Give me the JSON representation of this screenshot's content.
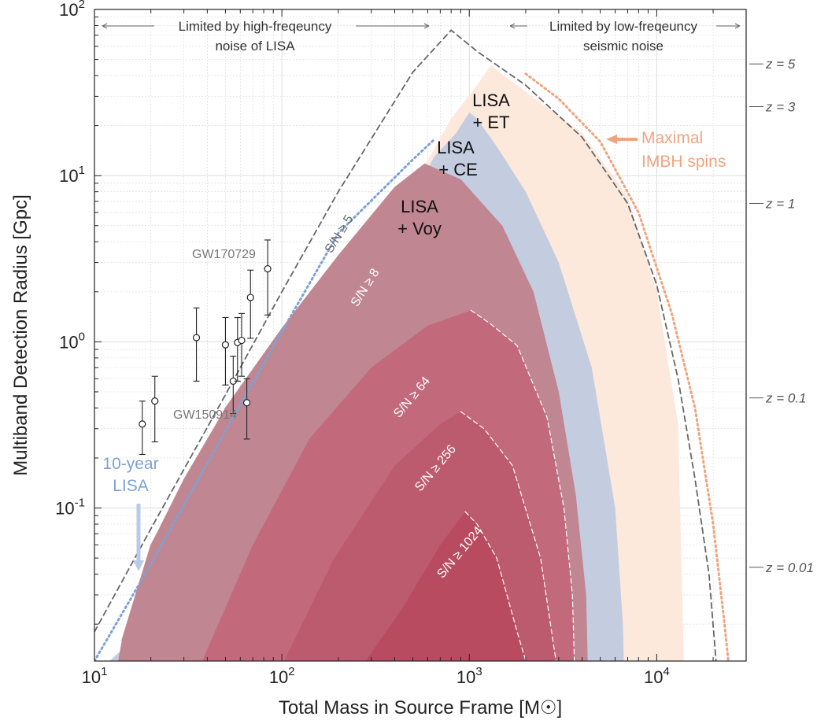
{
  "chart_data": {
    "type": "area",
    "x_scale": "log",
    "y_scale": "log",
    "xlim": [
      10,
      30000
    ],
    "ylim": [
      0.012,
      100
    ],
    "grid": true,
    "xlabel": "Total Mass in Source Frame [M☉]",
    "ylabel": "Multiband Detection Radius [Gpc]",
    "x_ticks": [
      {
        "value": 10,
        "base": "10",
        "exp": "1"
      },
      {
        "value": 100,
        "base": "10",
        "exp": "2"
      },
      {
        "value": 1000,
        "base": "10",
        "exp": "3"
      },
      {
        "value": 10000,
        "base": "10",
        "exp": "4"
      }
    ],
    "y_ticks": [
      {
        "value": 0.1,
        "base": "10",
        "exp": "-1"
      },
      {
        "value": 1,
        "base": "10",
        "exp": "0"
      },
      {
        "value": 10,
        "base": "10",
        "exp": "1"
      },
      {
        "value": 100,
        "base": "10",
        "exp": "2"
      }
    ],
    "redshift_axis": [
      {
        "z_label": "z = 5",
        "distance": 47
      },
      {
        "z_label": "z = 3",
        "distance": 26
      },
      {
        "z_label": "z = 1",
        "distance": 6.8
      },
      {
        "z_label": "z = 0.1",
        "distance": 0.46
      },
      {
        "z_label": "z = 0.01",
        "distance": 0.044
      }
    ],
    "regions": [
      {
        "label_line1": "LISA",
        "label_line2": "+ ET",
        "color": "#fde8dc",
        "points": [
          [
            10,
            0.01
          ],
          [
            100,
            0.01
          ],
          [
            1000,
            0.01
          ],
          [
            5000,
            0.01
          ],
          [
            14000,
            0.01
          ],
          [
            13000,
            0.32
          ],
          [
            10000,
            2.0
          ],
          [
            7000,
            7.5
          ],
          [
            4000,
            18
          ],
          [
            2000,
            32
          ],
          [
            1300,
            46
          ],
          [
            1100,
            35
          ],
          [
            800,
            22
          ],
          [
            400,
            5.5
          ],
          [
            100,
            0.45
          ],
          [
            30,
            0.07
          ],
          [
            18,
            0.03
          ],
          [
            14,
            0.014
          ],
          [
            10,
            0.01
          ]
        ]
      },
      {
        "label_line1": "LISA",
        "label_line2": "+ CE",
        "color": "#c4cce0",
        "points": [
          [
            10,
            0.01
          ],
          [
            1000,
            0.01
          ],
          [
            6700,
            0.01
          ],
          [
            6600,
            0.02
          ],
          [
            6000,
            0.1
          ],
          [
            4500,
            0.7
          ],
          [
            3000,
            3.0
          ],
          [
            2000,
            8.0
          ],
          [
            1400,
            15
          ],
          [
            1100,
            22
          ],
          [
            1000,
            24
          ],
          [
            850,
            18
          ],
          [
            650,
            13
          ],
          [
            300,
            2.4
          ],
          [
            100,
            0.45
          ],
          [
            30,
            0.07
          ],
          [
            18,
            0.03
          ],
          [
            14,
            0.014
          ],
          [
            10,
            0.01
          ]
        ]
      },
      {
        "label_line1": "LISA",
        "label_line2": "+ Voy",
        "color": "#c08692",
        "points": [
          [
            10,
            0.01
          ],
          [
            1000,
            0.01
          ],
          [
            4300,
            0.01
          ],
          [
            4200,
            0.03
          ],
          [
            3700,
            0.12
          ],
          [
            3000,
            0.5
          ],
          [
            2200,
            2.0
          ],
          [
            1500,
            5.0
          ],
          [
            900,
            9.5
          ],
          [
            580,
            11.8
          ],
          [
            400,
            8.5
          ],
          [
            200,
            3.3
          ],
          [
            100,
            1.2
          ],
          [
            50,
            0.4
          ],
          [
            30,
            0.15
          ],
          [
            20,
            0.06
          ],
          [
            14,
            0.016
          ],
          [
            13,
            0.01
          ],
          [
            10,
            0.01
          ]
        ]
      },
      {
        "label": "S/N ≥ 64",
        "color": "#c26a7c",
        "points": [
          [
            35,
            0.01
          ],
          [
            70,
            0.06
          ],
          [
            140,
            0.26
          ],
          [
            300,
            0.7
          ],
          [
            600,
            1.25
          ],
          [
            1020,
            1.55
          ],
          [
            1300,
            1.28
          ],
          [
            1800,
            0.95
          ],
          [
            2600,
            0.35
          ],
          [
            3200,
            0.1
          ],
          [
            3550,
            0.03
          ],
          [
            3650,
            0.01
          ]
        ]
      },
      {
        "label": "S/N ≥ 256",
        "color": "#bd5b6e",
        "points": [
          [
            95,
            0.01
          ],
          [
            190,
            0.05
          ],
          [
            400,
            0.18
          ],
          [
            700,
            0.32
          ],
          [
            900,
            0.38
          ],
          [
            1200,
            0.3
          ],
          [
            1700,
            0.18
          ],
          [
            2400,
            0.05
          ],
          [
            2900,
            0.012
          ],
          [
            3000,
            0.01
          ]
        ]
      },
      {
        "label": "S/N ≥ 1024",
        "color": "#b84b5f",
        "points": [
          [
            250,
            0.01
          ],
          [
            440,
            0.025
          ],
          [
            700,
            0.06
          ],
          [
            950,
            0.095
          ],
          [
            1100,
            0.08
          ],
          [
            1400,
            0.05
          ],
          [
            1800,
            0.018
          ],
          [
            2100,
            0.01
          ]
        ]
      }
    ],
    "series": [
      {
        "label": "S/N ≥ 5",
        "style": "dashed",
        "color": "#666666",
        "points": [
          [
            10,
            0.018
          ],
          [
            20,
            0.075
          ],
          [
            50,
            0.48
          ],
          [
            100,
            2.0
          ],
          [
            200,
            8.0
          ],
          [
            500,
            42
          ],
          [
            800,
            75
          ],
          [
            1100,
            56
          ],
          [
            2000,
            35
          ],
          [
            4000,
            17
          ],
          [
            7000,
            6.8
          ],
          [
            10000,
            2.2
          ],
          [
            13000,
            0.6
          ],
          [
            16000,
            0.15
          ],
          [
            19000,
            0.04
          ],
          [
            21000,
            0.01
          ]
        ]
      },
      {
        "label": "10-year LISA",
        "label_line1": "10-year",
        "label_line2": "LISA",
        "style": "dotted",
        "color": "#7ea2d4",
        "points": [
          [
            10,
            0.012
          ],
          [
            20,
            0.046
          ],
          [
            50,
            0.29
          ],
          [
            100,
            1.15
          ],
          [
            200,
            4.5
          ],
          [
            500,
            12.5
          ],
          [
            650,
            16.5
          ]
        ]
      },
      {
        "label": "S/N ≥ 8",
        "style": "solid",
        "color": "#c08692",
        "points": [
          [
            14,
            0.016
          ],
          [
            20,
            0.06
          ],
          [
            50,
            0.4
          ],
          [
            100,
            1.2
          ],
          [
            200,
            3.3
          ],
          [
            400,
            8.5
          ],
          [
            580,
            11.8
          ]
        ]
      },
      {
        "label": "Maximal IMBH spins",
        "label_line1": "Maximal",
        "label_line2": "IMBH spins",
        "style": "dotted",
        "color": "#f0a47e",
        "points": [
          [
            2000,
            41
          ],
          [
            3000,
            29
          ],
          [
            5000,
            16
          ],
          [
            8000,
            6
          ],
          [
            12000,
            1.5
          ],
          [
            16000,
            0.4
          ],
          [
            20000,
            0.08
          ],
          [
            23000,
            0.02
          ],
          [
            24500,
            0.01
          ]
        ]
      },
      {
        "label": "S/N ≥ 64 contour",
        "style": "dashed-white",
        "color": "#ffffff",
        "points": [
          [
            1020,
            1.55
          ],
          [
            1300,
            1.28
          ],
          [
            1800,
            0.95
          ],
          [
            2600,
            0.35
          ],
          [
            3200,
            0.1
          ],
          [
            3550,
            0.03
          ],
          [
            3650,
            0.01
          ]
        ]
      },
      {
        "label": "S/N ≥ 256 contour",
        "style": "dashed-white",
        "color": "#ffffff",
        "points": [
          [
            900,
            0.38
          ],
          [
            1200,
            0.3
          ],
          [
            1700,
            0.18
          ],
          [
            2400,
            0.05
          ],
          [
            2900,
            0.012
          ],
          [
            3000,
            0.01
          ]
        ]
      },
      {
        "label": "S/N ≥ 1024 contour",
        "style": "dashed-white",
        "color": "#ffffff",
        "points": [
          [
            950,
            0.095
          ],
          [
            1100,
            0.08
          ],
          [
            1400,
            0.05
          ],
          [
            1800,
            0.018
          ],
          [
            2100,
            0.01
          ]
        ]
      }
    ],
    "events": [
      {
        "mass": 18,
        "distance": 0.32,
        "lo": 0.21,
        "hi": 0.44
      },
      {
        "mass": 21,
        "distance": 0.44,
        "lo": 0.25,
        "hi": 0.62
      },
      {
        "mass": 35,
        "distance": 1.06,
        "lo": 0.58,
        "hi": 1.6
      },
      {
        "mass": 50,
        "distance": 0.96,
        "lo": 0.55,
        "hi": 1.4
      },
      {
        "mass": 55,
        "distance": 0.58,
        "lo": 0.37,
        "hi": 0.82
      },
      {
        "mass": 58,
        "distance": 0.99,
        "lo": 0.58,
        "hi": 1.4
      },
      {
        "mass": 61,
        "distance": 1.02,
        "lo": 0.62,
        "hi": 1.48
      },
      {
        "mass": 65,
        "distance": 0.43,
        "lo": 0.26,
        "hi": 0.6
      },
      {
        "mass": 68,
        "distance": 1.85,
        "lo": 1.05,
        "hi": 2.7
      },
      {
        "mass": 84,
        "distance": 2.75,
        "lo": 1.45,
        "hi": 4.1
      }
    ],
    "annotations": {
      "left_range_line1": "Limited by high-freqeuncy",
      "left_range_line2": "noise of LISA",
      "right_range_line1": "Limited by low-freqeuncy",
      "right_range_line2": "seismic noise",
      "event_label_1": "GW170729",
      "event_label_2": "GW150914"
    }
  },
  "colors": {
    "axis": "#222222",
    "grid": "#dddddd",
    "annotation_text": "#333333",
    "redshift_text": "#555555",
    "event_marker": "#222222",
    "event_label": "#777777"
  }
}
